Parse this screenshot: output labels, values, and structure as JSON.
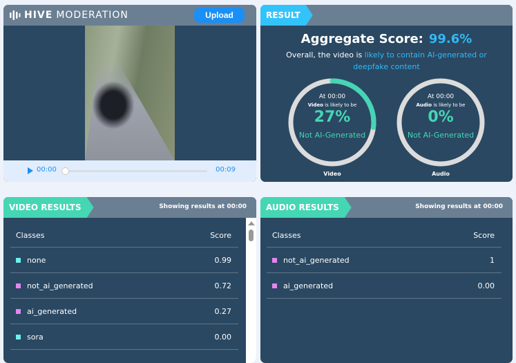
{
  "header": {
    "brand_bold": "HIVE",
    "brand_light": "MODERATION",
    "upload_label": "Upload"
  },
  "player": {
    "current_time": "00:00",
    "duration": "00:09",
    "progress": 0
  },
  "result": {
    "tab_label": "RESULT",
    "aggregate_label": "Aggregate Score:",
    "aggregate_value": "99.6%",
    "overall_prefix": "Overall, the video is ",
    "overall_highlight": "likely to contain AI-generated or deepfake content",
    "video_ring": {
      "time": "At 00:00",
      "subject": "Video",
      "likely": " is likely to be",
      "percent": "27%",
      "percent_value": 27,
      "verdict": "Not AI-Generated",
      "label": "Video"
    },
    "audio_ring": {
      "time": "At 00:00",
      "subject": "Audio",
      "likely": " is likely to be",
      "percent": "0%",
      "percent_value": 0,
      "verdict": "Not AI-Generated",
      "label": "Audio"
    }
  },
  "colors": {
    "accent_blue": "#33b8f5",
    "teal": "#45d6b4",
    "pink": "#e586ef",
    "cyan": "#6ff0ea",
    "panel": "#2a4862",
    "header": "#6b7f93"
  },
  "video_results": {
    "tab_label": "VIDEO RESULTS",
    "showing": "Showing results at 00:00",
    "col_classes": "Classes",
    "col_score": "Score",
    "rows": [
      {
        "cls": "none",
        "score": "0.99",
        "color": "#6ff0ea"
      },
      {
        "cls": "not_ai_generated",
        "score": "0.72",
        "color": "#e586ef"
      },
      {
        "cls": "ai_generated",
        "score": "0.27",
        "color": "#e586ef"
      },
      {
        "cls": "sora",
        "score": "0.00",
        "color": "#6ff0ea"
      }
    ]
  },
  "audio_results": {
    "tab_label": "AUDIO RESULTS",
    "showing": "Showing results at 00:00",
    "col_classes": "Classes",
    "col_score": "Score",
    "rows": [
      {
        "cls": "not_ai_generated",
        "score": "1",
        "color": "#e586ef"
      },
      {
        "cls": "ai_generated",
        "score": "0.00",
        "color": "#e586ef"
      }
    ]
  }
}
